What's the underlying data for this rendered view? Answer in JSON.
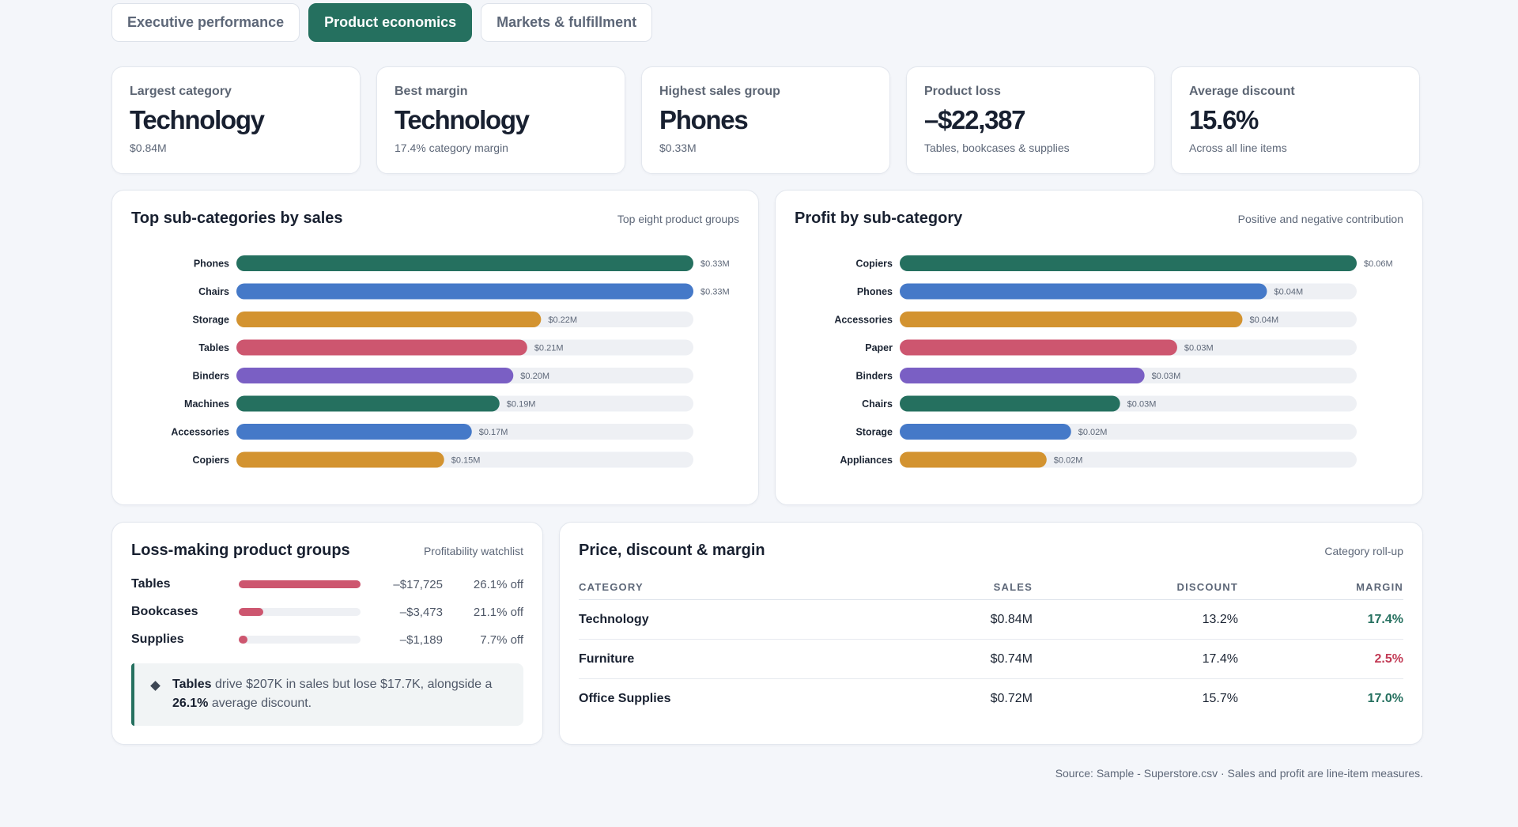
{
  "tabs": [
    {
      "label": "Executive performance",
      "active": false
    },
    {
      "label": "Product economics",
      "active": true
    },
    {
      "label": "Markets & fulfillment",
      "active": false
    }
  ],
  "kpis": [
    {
      "label": "Largest category",
      "value": "Technology",
      "sub": "$0.84M"
    },
    {
      "label": "Best margin",
      "value": "Technology",
      "sub": "17.4% category margin"
    },
    {
      "label": "Highest sales group",
      "value": "Phones",
      "sub": "$0.33M"
    },
    {
      "label": "Product loss",
      "value": "–$22,387",
      "sub": "Tables, bookcases & supplies"
    },
    {
      "label": "Average discount",
      "value": "15.6%",
      "sub": "Across all line items"
    }
  ],
  "colors": {
    "teal": "#25705f",
    "blue": "#4579c8",
    "gold": "#d39330",
    "rose": "#cd566f",
    "purple": "#7a5fc4",
    "track": "#eef0f4",
    "positive": "#25705f",
    "negative": "#c23a55"
  },
  "sales_panel": {
    "title": "Top sub-categories by sales",
    "note": "Top eight product groups"
  },
  "profit_panel": {
    "title": "Profit by sub-category",
    "note": "Positive and negative contribution"
  },
  "chart_data": [
    {
      "type": "bar",
      "orientation": "horizontal",
      "title": "Top sub-categories by sales",
      "categories": [
        "Phones",
        "Chairs",
        "Storage",
        "Tables",
        "Binders",
        "Machines",
        "Accessories",
        "Copiers"
      ],
      "values": [
        0.33,
        0.33,
        0.22,
        0.21,
        0.2,
        0.19,
        0.17,
        0.15
      ],
      "labels": [
        "$0.33M",
        "$0.33M",
        "$0.22M",
        "$0.21M",
        "$0.20M",
        "$0.19M",
        "$0.17M",
        "$0.15M"
      ],
      "colors": [
        "#25705f",
        "#4579c8",
        "#d39330",
        "#cd566f",
        "#7a5fc4",
        "#25705f",
        "#4579c8",
        "#d39330"
      ],
      "unit": "$M",
      "xlim": [
        0,
        0.33
      ]
    },
    {
      "type": "bar",
      "orientation": "horizontal",
      "title": "Profit by sub-category",
      "categories": [
        "Copiers",
        "Phones",
        "Accessories",
        "Paper",
        "Binders",
        "Chairs",
        "Storage",
        "Appliances"
      ],
      "values": [
        0.056,
        0.045,
        0.042,
        0.034,
        0.03,
        0.027,
        0.021,
        0.018
      ],
      "labels": [
        "$0.06M",
        "$0.04M",
        "$0.04M",
        "$0.03M",
        "$0.03M",
        "$0.03M",
        "$0.02M",
        "$0.02M"
      ],
      "colors": [
        "#25705f",
        "#4579c8",
        "#d39330",
        "#cd566f",
        "#7a5fc4",
        "#25705f",
        "#4579c8",
        "#d39330"
      ],
      "unit": "$M",
      "xlim": [
        0,
        0.056
      ]
    }
  ],
  "loss_panel": {
    "title": "Loss-making product groups",
    "note": "Profitability watchlist",
    "rows": [
      {
        "name": "Tables",
        "amount": "–$17,725",
        "discount": "26.1% off",
        "share": 1.0
      },
      {
        "name": "Bookcases",
        "amount": "–$3,473",
        "discount": "21.1% off",
        "share": 0.2
      },
      {
        "name": "Supplies",
        "amount": "–$1,189",
        "discount": "7.7% off",
        "share": 0.07
      }
    ],
    "callout": {
      "lead": "Tables",
      "text": " drive $207K in sales but lose $17.7K, alongside a ",
      "emph": "26.1%",
      "tail": " average discount."
    }
  },
  "table_panel": {
    "title": "Price, discount & margin",
    "note": "Category roll-up",
    "headers": [
      "CATEGORY",
      "SALES",
      "DISCOUNT",
      "MARGIN"
    ],
    "rows": [
      {
        "category": "Technology",
        "sales": "$0.84M",
        "discount": "13.2%",
        "margin": "17.4%",
        "tone": "positive"
      },
      {
        "category": "Furniture",
        "sales": "$0.74M",
        "discount": "17.4%",
        "margin": "2.5%",
        "tone": "negative"
      },
      {
        "category": "Office Supplies",
        "sales": "$0.72M",
        "discount": "15.7%",
        "margin": "17.0%",
        "tone": "positive"
      }
    ]
  },
  "footer": "Source: Sample - Superstore.csv · Sales and profit are line-item measures."
}
